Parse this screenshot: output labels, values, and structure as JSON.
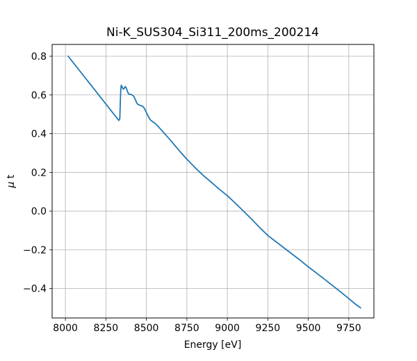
{
  "chart_data": {
    "type": "line",
    "title": "Ni-K_SUS304_Si311_200ms_200214",
    "xlabel": "Energy [eV]",
    "ylabel": "μ t",
    "ylabel_italic_part": "μ",
    "ylabel_regular_part": " t",
    "xlim": [
      7918,
      9905
    ],
    "ylim": [
      -0.552,
      0.861
    ],
    "xticks": [
      8000,
      8250,
      8500,
      8750,
      9000,
      9250,
      9500,
      9750
    ],
    "xtick_labels": [
      "8000",
      "8250",
      "8500",
      "8750",
      "9000",
      "9250",
      "9500",
      "9750"
    ],
    "yticks": [
      -0.4,
      -0.2,
      0.0,
      0.2,
      0.4,
      0.6,
      0.8
    ],
    "ytick_labels": [
      "−0.4",
      "−0.2",
      "0.0",
      "0.2",
      "0.4",
      "0.6",
      "0.8"
    ],
    "grid": true,
    "legend": null,
    "line_color": "#1f77b4",
    "grid_color": "#b0b0b0",
    "spine_color": "#000000",
    "series": [
      {
        "name": "mu_t_absorption",
        "x": [
          8017,
          8050,
          8100,
          8150,
          8200,
          8250,
          8300,
          8330,
          8336,
          8339,
          8342,
          8345,
          8350,
          8355,
          8359,
          8364,
          8370,
          8376,
          8383,
          8390,
          8398,
          8406,
          8414,
          8421,
          8428,
          8435,
          8441,
          8448,
          8457,
          8466,
          8475,
          8483,
          8492,
          8500,
          8512,
          8525,
          8540,
          8555,
          8570,
          8585,
          8600,
          8650,
          8700,
          8750,
          8800,
          8850,
          8900,
          8950,
          9000,
          9050,
          9100,
          9150,
          9200,
          9250,
          9300,
          9350,
          9400,
          9450,
          9500,
          9550,
          9600,
          9650,
          9700,
          9750,
          9790,
          9823
        ],
        "y": [
          0.8,
          0.765,
          0.712,
          0.659,
          0.606,
          0.553,
          0.5,
          0.468,
          0.478,
          0.56,
          0.63,
          0.65,
          0.643,
          0.633,
          0.63,
          0.636,
          0.643,
          0.636,
          0.618,
          0.606,
          0.603,
          0.602,
          0.599,
          0.594,
          0.583,
          0.57,
          0.557,
          0.551,
          0.548,
          0.545,
          0.542,
          0.536,
          0.524,
          0.51,
          0.488,
          0.471,
          0.461,
          0.452,
          0.44,
          0.426,
          0.412,
          0.365,
          0.315,
          0.268,
          0.225,
          0.185,
          0.15,
          0.113,
          0.08,
          0.04,
          0.0,
          -0.042,
          -0.085,
          -0.126,
          -0.158,
          -0.19,
          -0.222,
          -0.254,
          -0.288,
          -0.32,
          -0.352,
          -0.385,
          -0.418,
          -0.452,
          -0.48,
          -0.5
        ]
      }
    ]
  }
}
